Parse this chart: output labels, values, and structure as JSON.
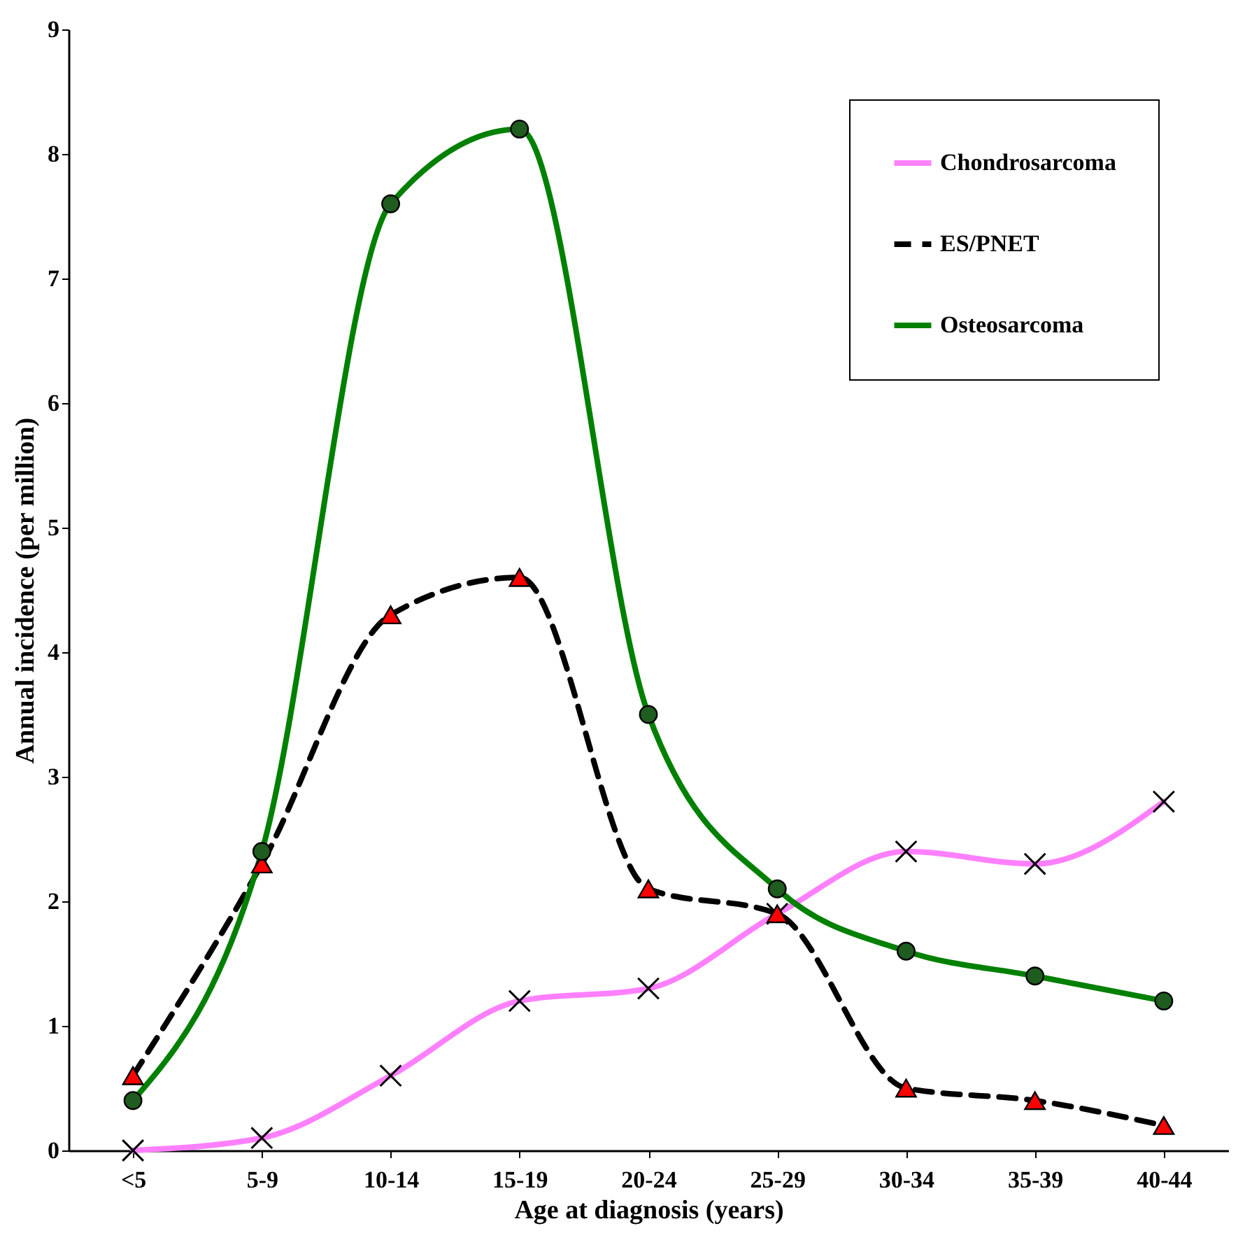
{
  "chart_data": {
    "type": "line",
    "xlabel": "Age at diagnosis (years)",
    "ylabel": "Annual incidence (per million)",
    "categories": [
      "<5",
      "5-9",
      "10-14",
      "15-19",
      "20-24",
      "25-29",
      "30-34",
      "35-39",
      "40-44"
    ],
    "ylim": [
      0,
      9
    ],
    "yticks": [
      0,
      1,
      2,
      3,
      4,
      5,
      6,
      7,
      8,
      9
    ],
    "grid": false,
    "legend": "top right",
    "series": [
      {
        "name": "Chondrosarcoma",
        "color": "#ff80ff",
        "marker": "cross",
        "line_style": "solid",
        "values": [
          0,
          0.1,
          0.6,
          1.2,
          1.3,
          1.9,
          2.4,
          2.3,
          2.8
        ]
      },
      {
        "name": "ES/PNET",
        "color": "#000000",
        "marker": "triangle",
        "line_style": "dashed",
        "values": [
          0.6,
          2.3,
          4.3,
          4.6,
          2.1,
          1.9,
          0.5,
          0.4,
          0.2
        ]
      },
      {
        "name": "Osteosarcoma",
        "color": "#008000",
        "marker": "circle",
        "line_style": "solid",
        "values": [
          0.4,
          2.4,
          7.6,
          8.2,
          3.5,
          2.1,
          1.6,
          1.4,
          1.2
        ]
      }
    ]
  }
}
